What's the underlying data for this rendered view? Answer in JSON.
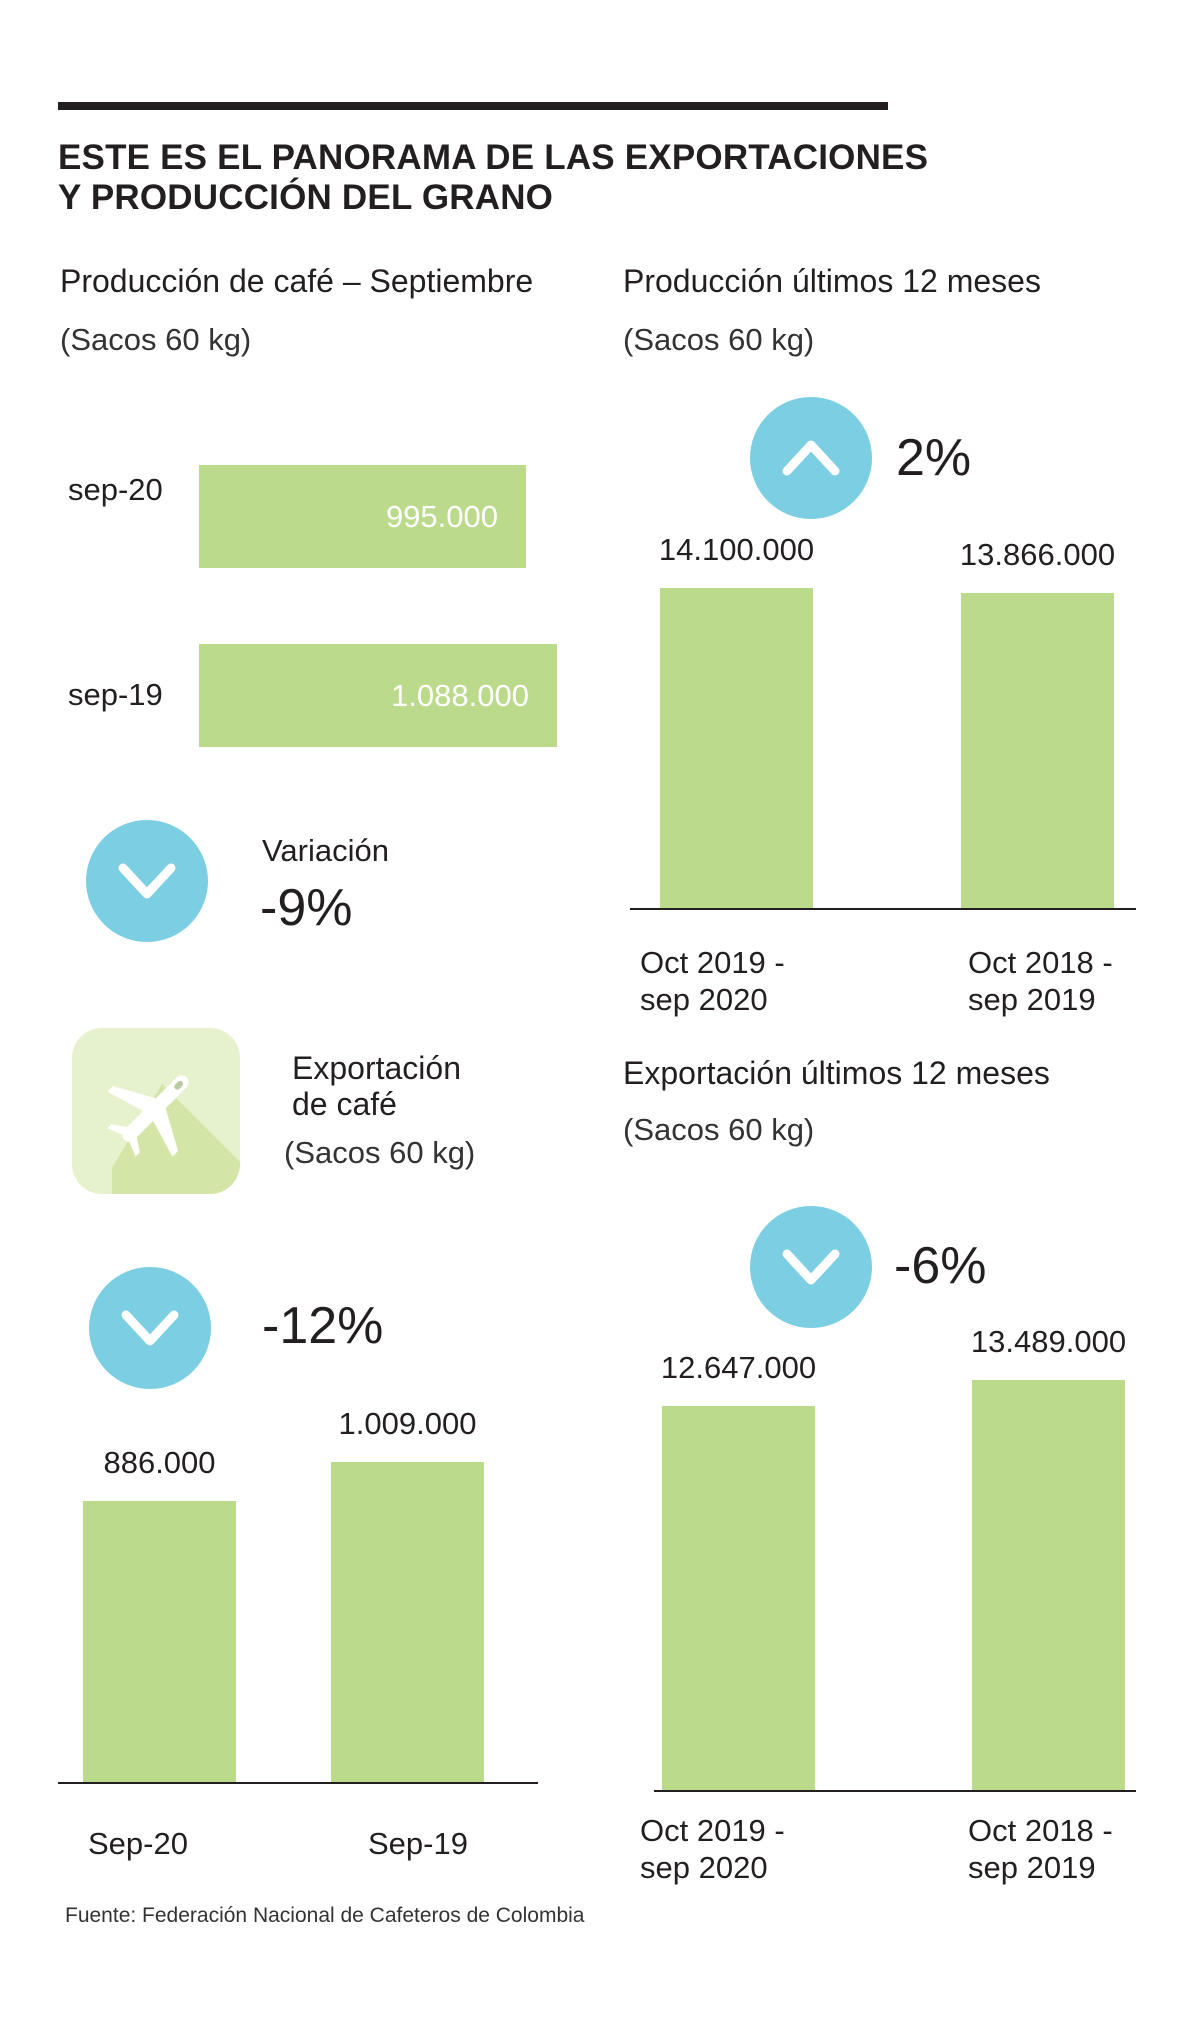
{
  "header": {
    "title_line1": "ESTE ES EL PANORAMA DE LAS EXPORTACIONES",
    "title_line2": "Y PRODUCCIÓN DEL GRANO"
  },
  "colors": {
    "bar": "#bcda8c",
    "circle": "#7ccfe3",
    "text": "#231f20"
  },
  "production_september": {
    "title": "Producción de café – Septiembre",
    "unit": "(Sacos 60 kg)",
    "variation_label": "Variación",
    "variation": "-9%",
    "variation_icon": "chevron-down-icon",
    "bars": [
      {
        "label": "sep-20",
        "value_text": "995.000"
      },
      {
        "label": "sep-19",
        "value_text": "1.088.000"
      }
    ]
  },
  "export_monthly": {
    "title_line1": "Exportación",
    "title_line2": "de café",
    "unit": "(Sacos 60 kg)",
    "icon": "airplane-icon",
    "variation": "-12%",
    "variation_icon": "chevron-down-icon",
    "bars": [
      {
        "label": "Sep-20",
        "value_text": "886.000"
      },
      {
        "label": "Sep-19",
        "value_text": "1.009.000"
      }
    ]
  },
  "production_12m": {
    "title": "Producción últimos 12 meses",
    "unit": "(Sacos 60 kg)",
    "variation": "2%",
    "variation_icon": "chevron-up-icon",
    "bars": [
      {
        "label": "Oct 2019 -\nsep 2020",
        "value_text": "14.100.000"
      },
      {
        "label": "Oct 2018 -\nsep 2019",
        "value_text": "13.866.000"
      }
    ]
  },
  "export_12m": {
    "title": "Exportación últimos 12 meses",
    "unit": "(Sacos 60 kg)",
    "variation": "-6%",
    "variation_icon": "chevron-down-icon",
    "bars": [
      {
        "label": "Oct 2019 -\nsep 2020",
        "value_text": "12.647.000"
      },
      {
        "label": "Oct 2018 -\nsep 2019",
        "value_text": "13.489.000"
      }
    ]
  },
  "footer": {
    "source": "Fuente: Federación Nacional de Cafeteros de Colombia"
  },
  "chart_data": [
    {
      "type": "bar",
      "orientation": "horizontal",
      "title": "Producción de café – Septiembre",
      "unit": "(Sacos 60 kg)",
      "categories": [
        "sep-20",
        "sep-19"
      ],
      "values": [
        995000,
        1088000
      ],
      "annotation": "Variación -9%"
    },
    {
      "type": "bar",
      "title": "Exportación de café",
      "unit": "(Sacos 60 kg)",
      "categories": [
        "Sep-20",
        "Sep-19"
      ],
      "values": [
        886000,
        1009000
      ],
      "annotation": "-12%"
    },
    {
      "type": "bar",
      "title": "Producción últimos 12 meses",
      "unit": "(Sacos 60 kg)",
      "categories": [
        "Oct 2019 - sep 2020",
        "Oct 2018 - sep 2019"
      ],
      "values": [
        14100000,
        13866000
      ],
      "annotation": "2%"
    },
    {
      "type": "bar",
      "title": "Exportación últimos 12 meses",
      "unit": "(Sacos 60 kg)",
      "categories": [
        "Oct 2019 - sep 2020",
        "Oct 2018 - sep 2019"
      ],
      "values": [
        12647000,
        13489000
      ],
      "annotation": "-6%"
    }
  ]
}
